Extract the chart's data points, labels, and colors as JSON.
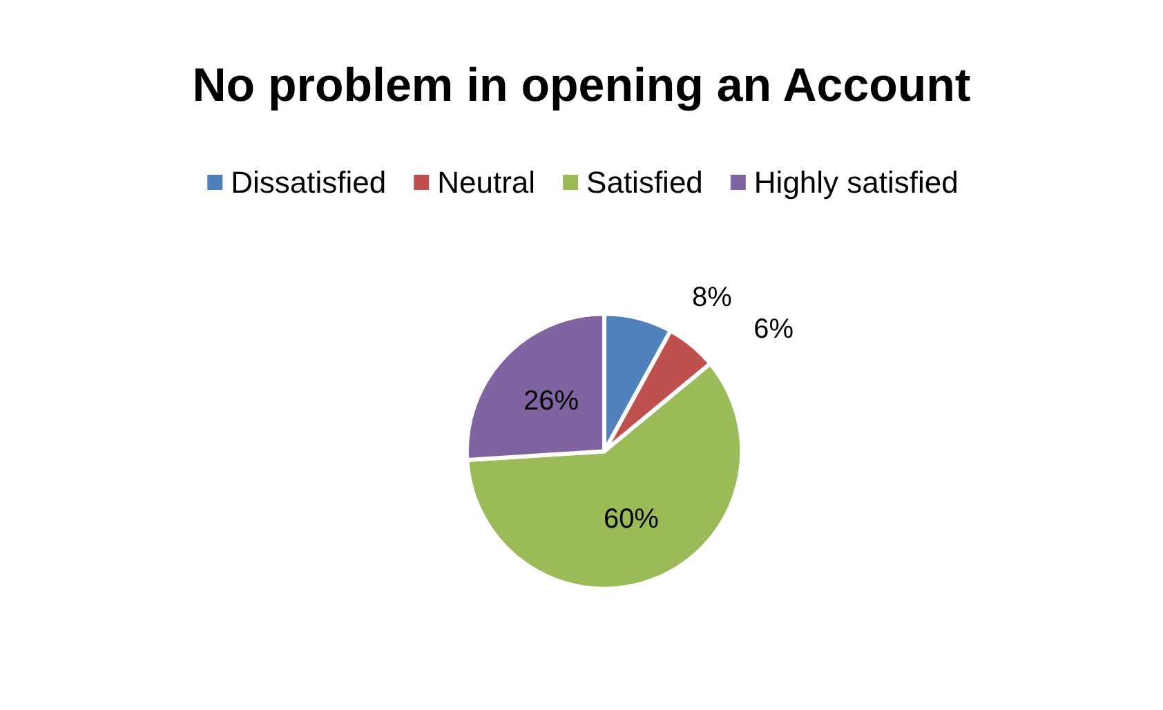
{
  "chart_data": {
    "type": "pie",
    "title": "No problem in opening an Account",
    "categories": [
      "Dissatisfied",
      "Neutral",
      "Satisfied",
      "Highly satisfied"
    ],
    "values": [
      8,
      6,
      60,
      26
    ],
    "colors": [
      "#4f81bd",
      "#c0504d",
      "#9bbb59",
      "#8064a2"
    ],
    "value_labels": [
      "8%",
      "6%",
      "60%",
      "26%"
    ],
    "legend": "top"
  }
}
